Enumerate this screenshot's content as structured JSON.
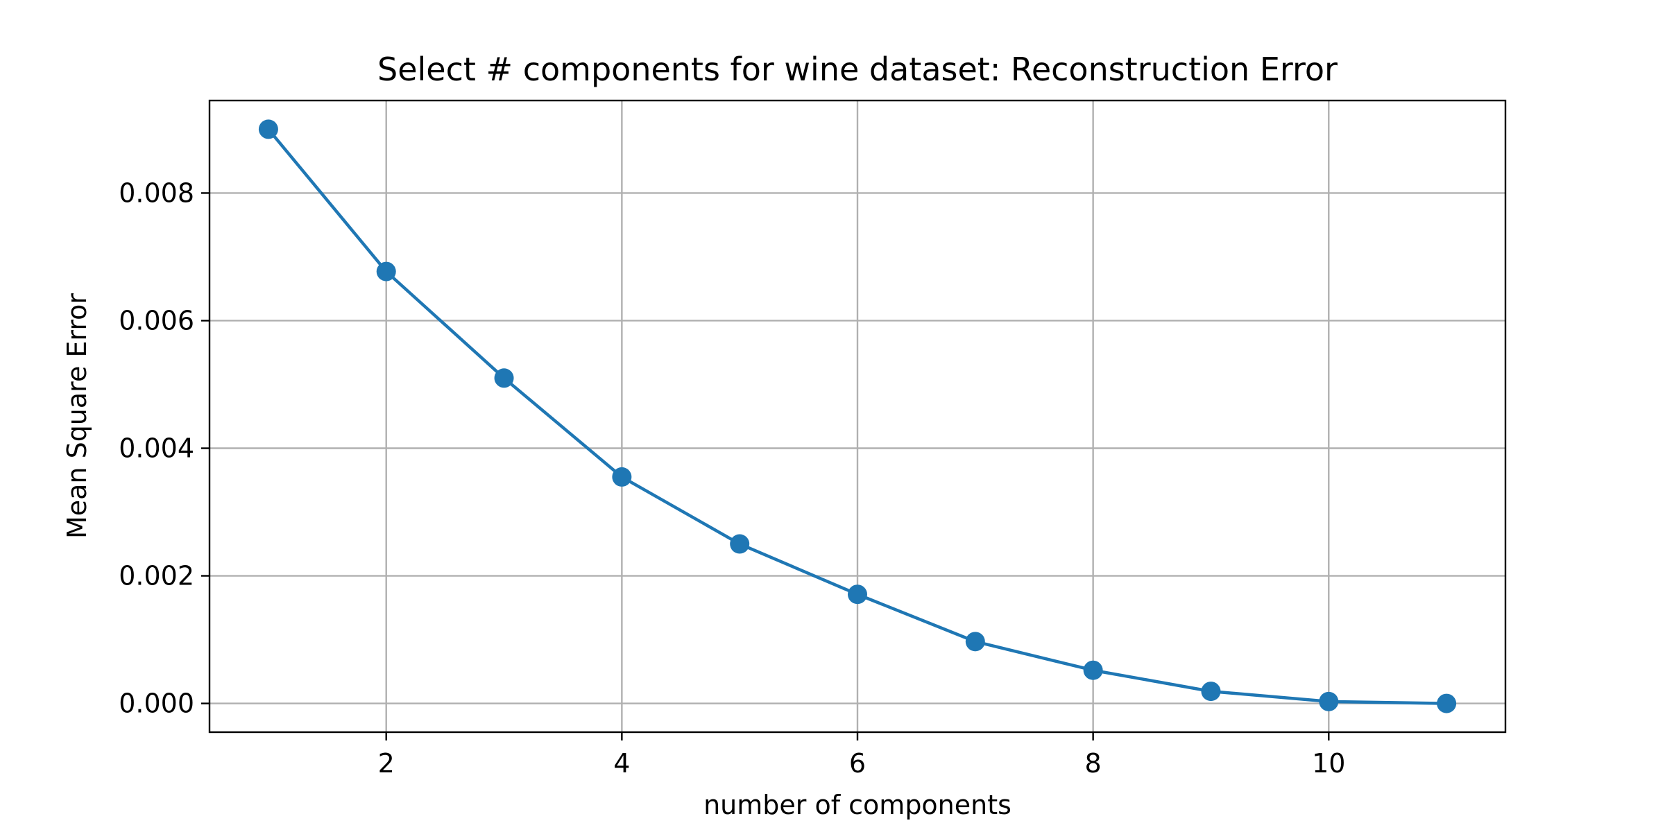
{
  "chart_data": {
    "type": "line",
    "title": "Select # components for wine dataset: Reconstruction Error",
    "xlabel": "number of components",
    "ylabel": "Mean Square Error",
    "x": [
      1,
      2,
      3,
      4,
      5,
      6,
      7,
      8,
      9,
      10,
      11
    ],
    "series": [
      {
        "name": "reconstruction error",
        "color": "#1f77b4",
        "marker": "circle",
        "values": [
          0.009,
          0.00677,
          0.0051,
          0.00355,
          0.0025,
          0.00171,
          0.00097,
          0.00052,
          0.00019,
          3e-05,
          0.0
        ]
      }
    ],
    "xlim": [
      0.5,
      11.5
    ],
    "ylim": [
      -0.00045,
      0.00945
    ],
    "xticks": [
      2,
      4,
      6,
      8,
      10
    ],
    "xtick_labels": [
      "2",
      "4",
      "6",
      "8",
      "10"
    ],
    "yticks": [
      0.0,
      0.002,
      0.004,
      0.006,
      0.008
    ],
    "ytick_labels": [
      "0.000",
      "0.002",
      "0.004",
      "0.006",
      "0.008"
    ],
    "grid": true,
    "legend": "none"
  }
}
